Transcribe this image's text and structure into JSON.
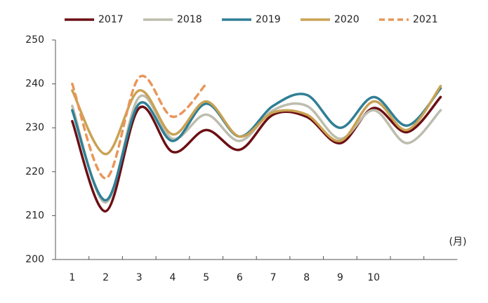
{
  "chart_data": {
    "type": "line",
    "x_unit_label": "(月)",
    "categories": [
      "1",
      "2",
      "3",
      "4",
      "5",
      "6",
      "7",
      "8",
      "9",
      "10",
      null,
      null
    ],
    "series": [
      {
        "name": "2017",
        "color": "#6b0f14",
        "values": [
          231.5,
          211,
          234.5,
          224.5,
          229.5,
          225,
          233,
          232.5,
          226.5,
          234.5,
          229,
          237
        ]
      },
      {
        "name": "2018",
        "color": "#bdbdae",
        "values": [
          235,
          213,
          237,
          227.5,
          233,
          227,
          234,
          235,
          227.5,
          234,
          226.5,
          234
        ]
      },
      {
        "name": "2019",
        "color": "#2f7f95",
        "values": [
          234,
          213.5,
          235.5,
          227,
          235.5,
          228,
          235,
          237.5,
          230,
          237,
          230.5,
          239
        ]
      },
      {
        "name": "2020",
        "color": "#c9a253",
        "values": [
          238.5,
          224,
          238.5,
          228.5,
          236,
          228,
          233.5,
          233,
          227,
          236,
          229.5,
          239.5
        ]
      },
      {
        "name": "2021",
        "color": "#e8965a",
        "dashed": true,
        "values": [
          240,
          218.5,
          241.5,
          232.5,
          240,
          null,
          null,
          null,
          null,
          null,
          null,
          null
        ]
      }
    ],
    "ylim": [
      200,
      250
    ],
    "yticks": [
      200,
      210,
      220,
      230,
      240,
      250
    ],
    "grid": false,
    "legend": "top"
  }
}
